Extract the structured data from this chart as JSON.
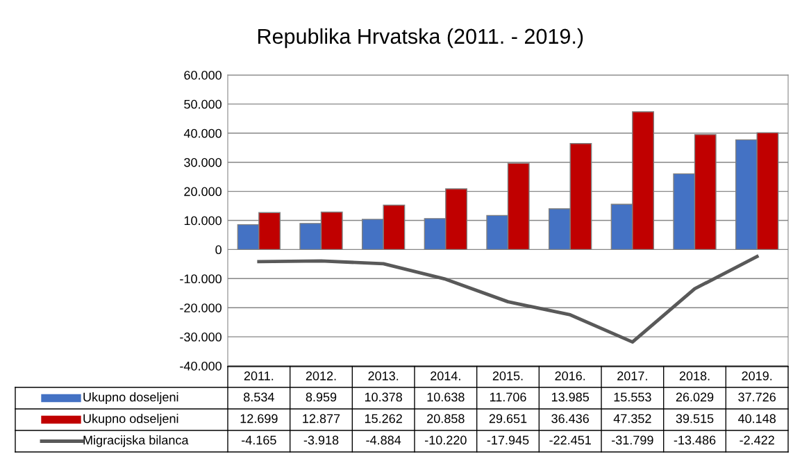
{
  "chart_data": {
    "type": "bar",
    "title": "Republika Hrvatska (2011. - 2019.)",
    "categories": [
      "2011.",
      "2012.",
      "2013.",
      "2014.",
      "2015.",
      "2016.",
      "2017.",
      "2018.",
      "2019."
    ],
    "series": [
      {
        "name": "Ukupno doseljeni",
        "color": "#4472c4",
        "values": [
          8534,
          8959,
          10378,
          10638,
          11706,
          13985,
          15553,
          26029,
          37726
        ],
        "value_labels": [
          "8.534",
          "8.959",
          "10.378",
          "10.638",
          "11.706",
          "13.985",
          "15.553",
          "26.029",
          "37.726"
        ]
      },
      {
        "name": "Ukupno odseljeni",
        "color": "#c00000",
        "values": [
          12699,
          12877,
          15262,
          20858,
          29651,
          36436,
          47352,
          39515,
          40148
        ],
        "value_labels": [
          "12.699",
          "12.877",
          "15.262",
          "20.858",
          "29.651",
          "36.436",
          "47.352",
          "39.515",
          "40.148"
        ]
      },
      {
        "name": "Migracijska bilanca",
        "type": "line",
        "color": "#595959",
        "values": [
          -4165,
          -3918,
          -4884,
          -10220,
          -17945,
          -22451,
          -31799,
          -13486,
          -2422
        ],
        "value_labels": [
          "-4.165",
          "-3.918",
          "-4.884",
          "-10.220",
          "-17.945",
          "-22.451",
          "-31.799",
          "-13.486",
          "-2.422"
        ]
      }
    ],
    "ylim": [
      -40000,
      60000
    ],
    "yticks": [
      {
        "value": -40000,
        "label": "-40.000"
      },
      {
        "value": -30000,
        "label": "-30.000"
      },
      {
        "value": -20000,
        "label": "-20.000"
      },
      {
        "value": -10000,
        "label": "-10.000"
      },
      0,
      {
        "value": 10000,
        "label": "10.000"
      },
      {
        "value": 20000,
        "label": "20.000"
      },
      {
        "value": 30000,
        "label": "30.000"
      },
      {
        "value": 40000,
        "label": "40.000"
      },
      {
        "value": 50000,
        "label": "50.000"
      },
      {
        "value": 60000,
        "label": "60.000"
      }
    ],
    "grid": "y",
    "legend": "bottom",
    "marker": "none",
    "line_style": "solid"
  }
}
